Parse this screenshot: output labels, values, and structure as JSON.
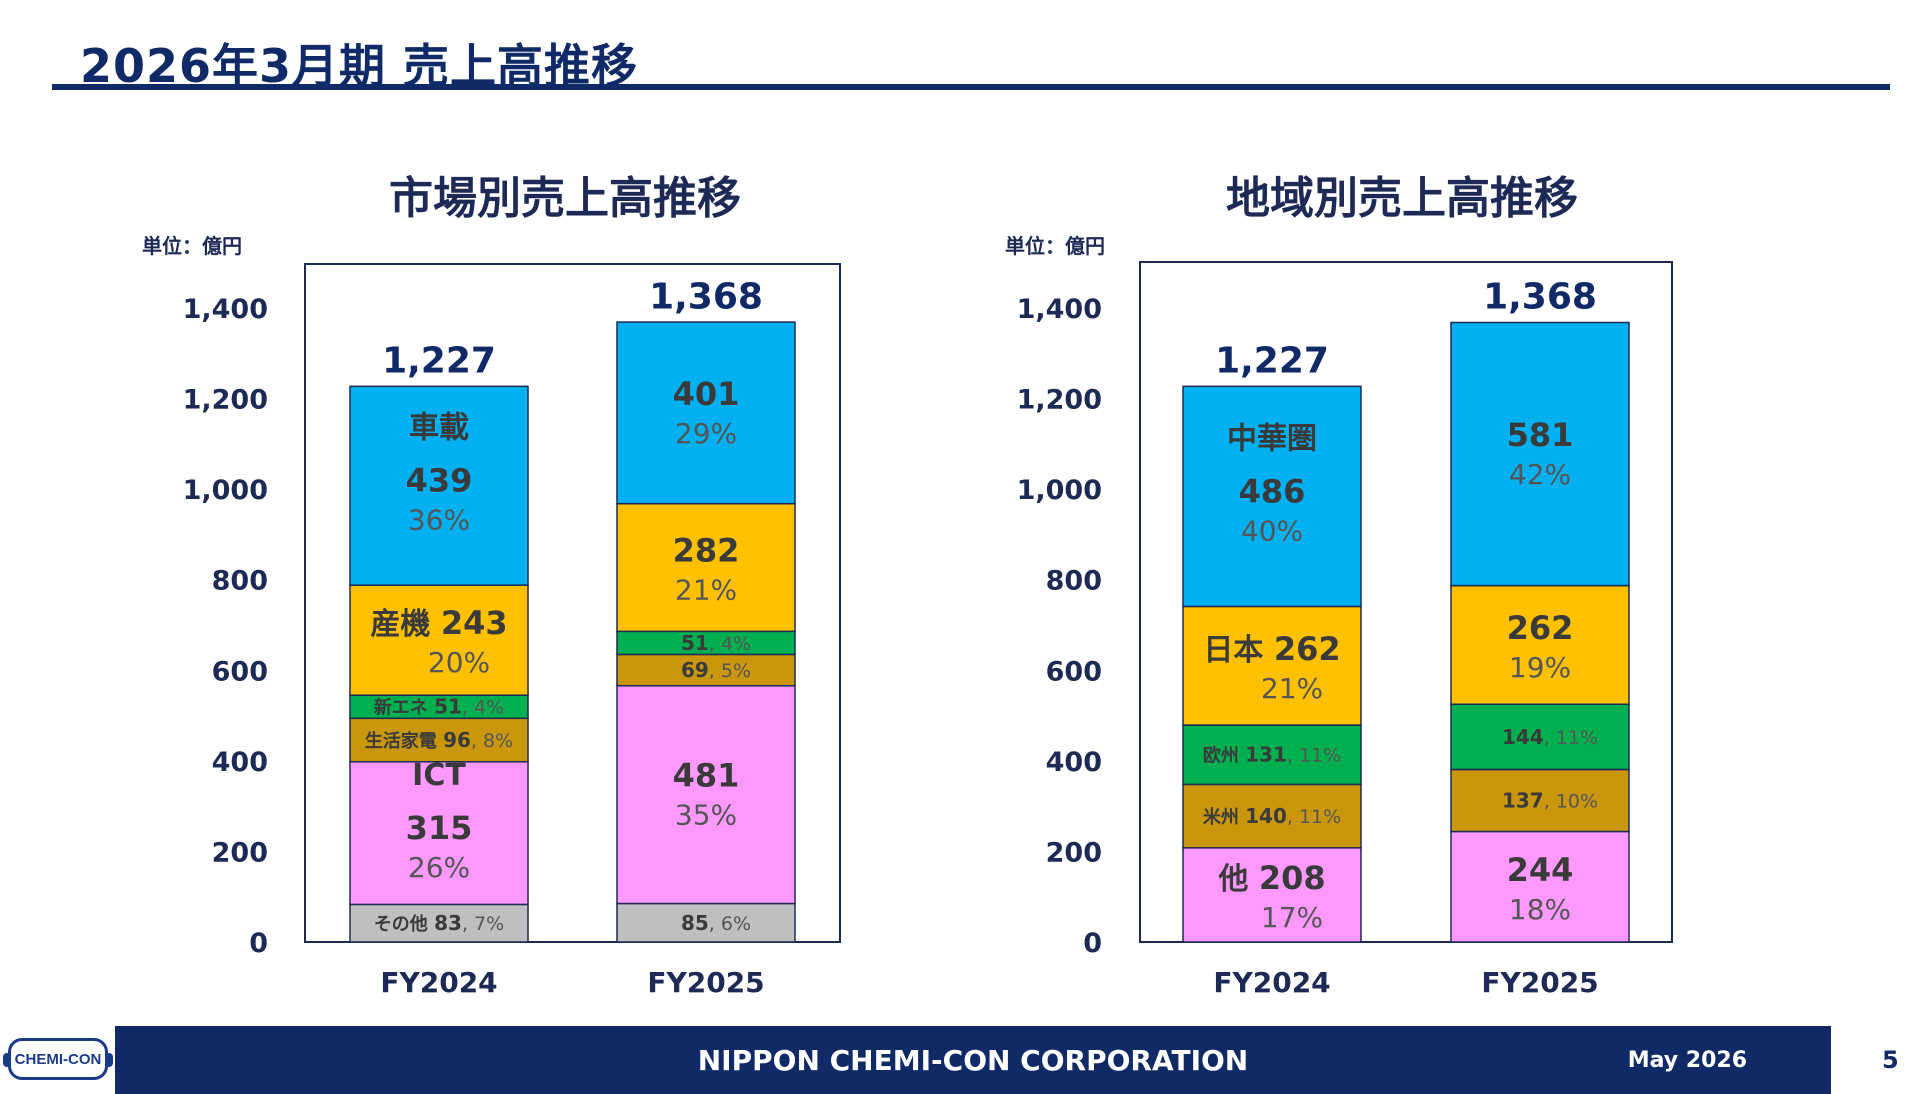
{
  "page": {
    "title": "2026年3月期 売上高推移",
    "footer_company": "NIPPON CHEMI-CON CORPORATION",
    "footer_date": "May 2026",
    "page_number": "5",
    "logo_text": "CHEMI-CON"
  },
  "colors": {
    "navy": "#0f2a66",
    "blue": "#00b0f0",
    "yellow": "#ffc000",
    "green": "#00b050",
    "gold": "#c9960c",
    "pink": "#ff99ff",
    "gray": "#bfbfbf"
  },
  "chart_data": [
    {
      "type": "bar",
      "stacked": true,
      "title": "市場別売上高推移",
      "unit_label": "単位：億円",
      "categories": [
        "FY2024",
        "FY2025"
      ],
      "totals": [
        "1,227",
        "1,368"
      ],
      "total_values": [
        1227,
        1368
      ],
      "ylim": [
        0,
        1500
      ],
      "yticks": [
        0,
        200,
        400,
        600,
        800,
        1000,
        1200,
        1400
      ],
      "ytick_labels": [
        "0",
        "200",
        "400",
        "600",
        "800",
        "1,000",
        "1,200",
        "1,400"
      ],
      "series": [
        {
          "name": "その他",
          "color": "#bfbfbf",
          "values": [
            83,
            85
          ],
          "pct": [
            "7%",
            "6%"
          ],
          "style": "inline-small"
        },
        {
          "name": "ICT",
          "color": "#ff99ff",
          "values": [
            315,
            481
          ],
          "pct": [
            "26%",
            "35%"
          ],
          "style": "stack-named"
        },
        {
          "name": "生活家電",
          "color": "#c9960c",
          "values": [
            96,
            69
          ],
          "pct": [
            "8%",
            "5%"
          ],
          "style": "inline-small"
        },
        {
          "name": "新エネ",
          "color": "#00b050",
          "values": [
            51,
            51
          ],
          "pct": [
            "4%",
            "4%"
          ],
          "style": "inline-small"
        },
        {
          "name": "産機",
          "color": "#ffc000",
          "values": [
            243,
            282
          ],
          "pct": [
            "20%",
            "21%"
          ],
          "style": "inline-big"
        },
        {
          "name": "車載",
          "color": "#00b0f0",
          "values": [
            439,
            401
          ],
          "pct": [
            "36%",
            "29%"
          ],
          "style": "stack-named"
        }
      ]
    },
    {
      "type": "bar",
      "stacked": true,
      "title": "地域別売上高推移",
      "unit_label": "単位：億円",
      "categories": [
        "FY2024",
        "FY2025"
      ],
      "totals": [
        "1,227",
        "1,368"
      ],
      "total_values": [
        1227,
        1368
      ],
      "ylim": [
        0,
        1500
      ],
      "yticks": [
        0,
        200,
        400,
        600,
        800,
        1000,
        1200,
        1400
      ],
      "ytick_labels": [
        "0",
        "200",
        "400",
        "600",
        "800",
        "1,000",
        "1,200",
        "1,400"
      ],
      "series": [
        {
          "name": "他",
          "color": "#ff99ff",
          "values": [
            208,
            244
          ],
          "pct": [
            "17%",
            "18%"
          ],
          "style": "inline-big"
        },
        {
          "name": "米州",
          "color": "#c9960c",
          "values": [
            140,
            137
          ],
          "pct": [
            "11%",
            "10%"
          ],
          "style": "inline-small"
        },
        {
          "name": "欧州",
          "color": "#00b050",
          "values": [
            131,
            144
          ],
          "pct": [
            "11%",
            "11%"
          ],
          "style": "inline-small"
        },
        {
          "name": "日本",
          "color": "#ffc000",
          "values": [
            262,
            262
          ],
          "pct": [
            "21%",
            "19%"
          ],
          "style": "inline-big"
        },
        {
          "name": "中華圏",
          "color": "#00b0f0",
          "values": [
            486,
            581
          ],
          "pct": [
            "40%",
            "42%"
          ],
          "style": "stack-named"
        }
      ]
    }
  ]
}
